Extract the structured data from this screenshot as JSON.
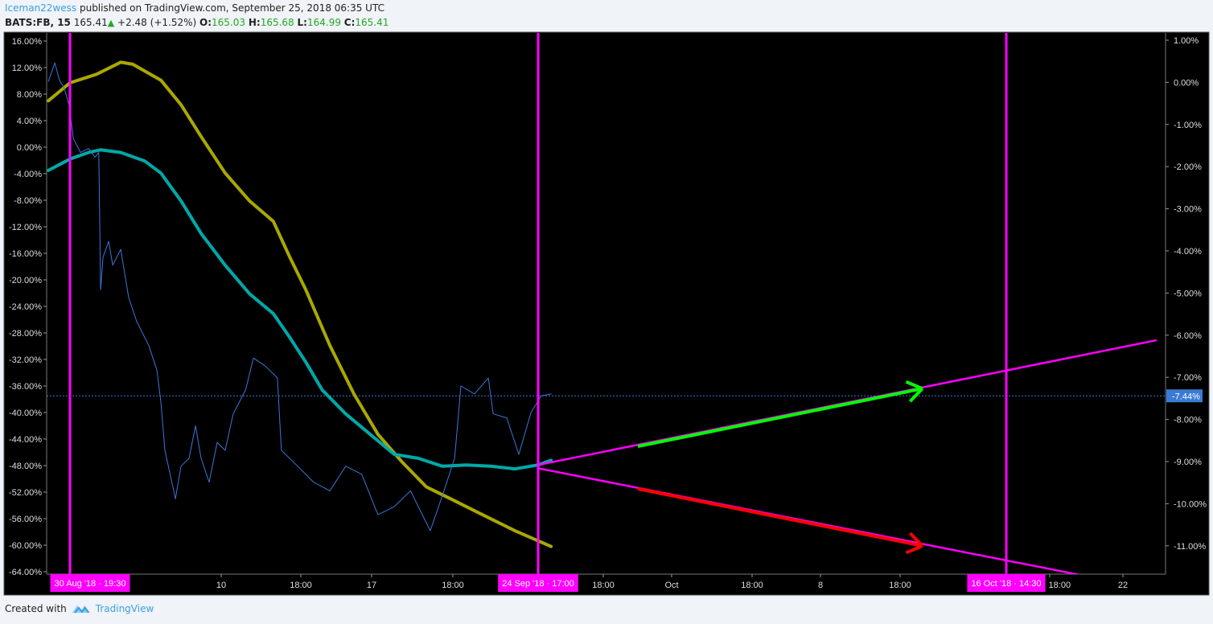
{
  "header": {
    "author": "Iceman22wess",
    "published": "published on TradingView.com, September 25, 2018 06:35 UTC",
    "symbol": "BATS:FB, 15",
    "last": "165.41",
    "change": "+2.48 (+1.52%)",
    "o_label": "O:",
    "o": "165.03",
    "h_label": "H:",
    "h": "165.68",
    "l_label": "L:",
    "l": "164.99",
    "c_label": "C:",
    "c": "165.41"
  },
  "footer": {
    "created_with": "Created with",
    "brand": "TradingView"
  },
  "colors": {
    "background": "#000000",
    "price": "#3a78d9",
    "ma_slow": "#aaa800",
    "ma_fast": "#00a8a8",
    "drawing": "#ff00ff",
    "up_arrow": "#00ff00",
    "down_arrow": "#ff0000",
    "last_badge": "#3a7bd5"
  },
  "chart_data": {
    "type": "line",
    "title": "",
    "left_axis": {
      "ylim": [
        -64,
        16
      ],
      "unit": "%",
      "ticks": [
        "16.00%",
        "12.00%",
        "8.00%",
        "4.00%",
        "0.00%",
        "-4.00%",
        "-8.00%",
        "-12.00%",
        "-16.00%",
        "-20.00%",
        "-24.00%",
        "-28.00%",
        "-32.00%",
        "-36.00%",
        "-40.00%",
        "-44.00%",
        "-48.00%",
        "-52.00%",
        "-56.00%",
        "-60.00%",
        "-64.00%"
      ]
    },
    "right_axis": {
      "ticks": [
        "1.00%",
        "0.00%",
        "-1.00%",
        "-2.00%",
        "-3.00%",
        "-4.00%",
        "-5.00%",
        "-6.00%",
        "-7.00%",
        "-8.00%",
        "-9.00%",
        "-10.00%",
        "-11.00%"
      ],
      "last_value_label": "-7.44%",
      "last_value": -7.44
    },
    "x_ticks": [
      {
        "label": "10",
        "time": "2018-09-10T00:00"
      },
      {
        "label": "18:00",
        "time": "2018-09-13T18:00"
      },
      {
        "label": "17",
        "time": "2018-09-17T00:00"
      },
      {
        "label": "18:00",
        "time": "2018-09-20T18:00"
      },
      {
        "label": "18:00",
        "time": "2018-09-27T18:00"
      },
      {
        "label": "Oct",
        "time": "2018-10-01T00:00"
      },
      {
        "label": "18:00",
        "time": "2018-10-04T18:00"
      },
      {
        "label": "8",
        "time": "2018-10-08T00:00"
      },
      {
        "label": "18:00",
        "time": "2018-10-11T18:00"
      },
      {
        "label": "18:00",
        "time": "2018-10-17T18:00"
      },
      {
        "label": "22",
        "time": "2018-10-22T00:00"
      }
    ],
    "vertical_markers": [
      {
        "label": "30 Aug '18 · 19:30",
        "time": "2018-08-30T19:30"
      },
      {
        "label": "24 Sep '18 · 17:00",
        "time": "2018-09-24T17:00"
      },
      {
        "label": "16 Oct '18 · 14:30",
        "time": "2018-10-16T14:30"
      }
    ],
    "series": [
      {
        "id": "price",
        "points": [
          [
            "2018-08-29T08:30",
            9.9
          ],
          [
            "2018-08-29T19:00",
            12.7
          ],
          [
            "2018-08-30T02:30",
            10.1
          ],
          [
            "2018-08-30T10:30",
            8.8
          ],
          [
            "2018-08-30T18:00",
            6.4
          ],
          [
            "2018-08-31T01:00",
            1.3
          ],
          [
            "2018-08-31T12:30",
            -0.8
          ],
          [
            "2018-09-01T01:30",
            -0.2
          ],
          [
            "2018-09-01T12:00",
            -1.5
          ],
          [
            "2018-09-01T18:00",
            -0.8
          ],
          [
            "2018-09-01T21:00",
            -21.5
          ],
          [
            "2018-09-02T01:00",
            -16.6
          ],
          [
            "2018-09-02T10:00",
            -14.2
          ],
          [
            "2018-09-02T16:30",
            -17.8
          ],
          [
            "2018-09-03T05:30",
            -15.4
          ],
          [
            "2018-09-03T18:30",
            -22.7
          ],
          [
            "2018-09-04T07:30",
            -26.3
          ],
          [
            "2018-09-05T03:00",
            -29.9
          ],
          [
            "2018-09-05T16:00",
            -33.6
          ],
          [
            "2018-09-05T22:30",
            -38.4
          ],
          [
            "2018-09-06T05:00",
            -45.7
          ],
          [
            "2018-09-06T22:00",
            -53.0
          ],
          [
            "2018-09-07T07:00",
            -48.1
          ],
          [
            "2018-09-07T20:00",
            -46.9
          ],
          [
            "2018-09-08T06:30",
            -42.0
          ],
          [
            "2018-09-08T15:30",
            -46.9
          ],
          [
            "2018-09-09T04:30",
            -50.5
          ],
          [
            "2018-09-09T17:30",
            -44.5
          ],
          [
            "2018-09-10T04:30",
            -45.7
          ],
          [
            "2018-09-10T13:30",
            -40.2
          ],
          [
            "2018-09-11T03:30",
            -36.6
          ],
          [
            "2018-09-11T12:30",
            -31.8
          ],
          [
            "2018-09-12T02:00",
            -33.0
          ],
          [
            "2018-09-12T15:30",
            -34.8
          ],
          [
            "2018-09-12T20:00",
            -45.7
          ],
          [
            "2018-09-13T14:30",
            -48.1
          ],
          [
            "2018-09-14T08:00",
            -50.5
          ],
          [
            "2018-09-15T02:00",
            -51.8
          ],
          [
            "2018-09-15T19:30",
            -48.1
          ],
          [
            "2018-09-16T13:00",
            -49.3
          ],
          [
            "2018-09-17T07:00",
            -55.4
          ],
          [
            "2018-09-18T01:00",
            -54.2
          ],
          [
            "2018-09-18T19:00",
            -51.8
          ],
          [
            "2018-09-19T17:00",
            -57.8
          ],
          [
            "2018-09-20T06:30",
            -52.5
          ],
          [
            "2018-09-20T20:00",
            -46.9
          ],
          [
            "2018-09-21T03:00",
            -36.0
          ],
          [
            "2018-09-21T18:00",
            -37.2
          ],
          [
            "2018-09-22T09:30",
            -34.8
          ],
          [
            "2018-09-22T15:00",
            -40.2
          ],
          [
            "2018-09-23T06:00",
            -40.8
          ],
          [
            "2018-09-23T19:30",
            -46.3
          ],
          [
            "2018-09-24T09:00",
            -40.0
          ],
          [
            "2018-09-24T20:30",
            -37.5
          ],
          [
            "2018-09-25T07:30",
            -37.2
          ]
        ]
      },
      {
        "id": "ma_slow",
        "points": [
          [
            "2018-08-29T08:30",
            7.0
          ],
          [
            "2018-08-30T19:30",
            9.7
          ],
          [
            "2018-09-01T14:30",
            11.0
          ],
          [
            "2018-09-03T05:30",
            12.8
          ],
          [
            "2018-09-04T01:00",
            12.5
          ],
          [
            "2018-09-05T22:30",
            10.1
          ],
          [
            "2018-09-07T07:00",
            6.4
          ],
          [
            "2018-09-08T15:30",
            1.6
          ],
          [
            "2018-09-10T04:30",
            -3.9
          ],
          [
            "2018-09-11T08:00",
            -8.1
          ],
          [
            "2018-09-12T11:00",
            -11.2
          ],
          [
            "2018-09-13T05:30",
            -16.6
          ],
          [
            "2018-09-13T23:30",
            -21.5
          ],
          [
            "2018-09-15T02:00",
            -29.9
          ],
          [
            "2018-09-16T04:30",
            -37.2
          ],
          [
            "2018-09-17T07:00",
            -43.3
          ],
          [
            "2018-09-18T10:00",
            -47.5
          ],
          [
            "2018-09-19T12:30",
            -51.2
          ],
          [
            "2018-09-20T15:30",
            -53.0
          ],
          [
            "2018-09-22T03:00",
            -55.4
          ],
          [
            "2018-09-23T15:00",
            -57.8
          ],
          [
            "2018-09-25T07:30",
            -60.2
          ]
        ]
      },
      {
        "id": "ma_fast",
        "points": [
          [
            "2018-08-29T08:30",
            -3.5
          ],
          [
            "2018-08-30T19:30",
            -1.8
          ],
          [
            "2018-09-01T01:30",
            -0.8
          ],
          [
            "2018-09-01T21:00",
            -0.4
          ],
          [
            "2018-09-03T05:30",
            -0.8
          ],
          [
            "2018-09-04T20:30",
            -2.1
          ],
          [
            "2018-09-05T22:30",
            -3.9
          ],
          [
            "2018-09-07T07:00",
            -8.1
          ],
          [
            "2018-09-08T15:30",
            -13.0
          ],
          [
            "2018-09-10T04:30",
            -17.8
          ],
          [
            "2018-09-11T08:00",
            -22.1
          ],
          [
            "2018-09-12T11:00",
            -25.1
          ],
          [
            "2018-09-13T05:30",
            -28.7
          ],
          [
            "2018-09-13T23:30",
            -32.4
          ],
          [
            "2018-09-14T17:30",
            -36.6
          ],
          [
            "2018-09-15T19:30",
            -40.2
          ],
          [
            "2018-09-16T22:30",
            -43.3
          ],
          [
            "2018-09-18T01:00",
            -46.3
          ],
          [
            "2018-09-19T03:30",
            -46.9
          ],
          [
            "2018-09-20T06:30",
            -48.1
          ],
          [
            "2018-09-21T09:00",
            -47.9
          ],
          [
            "2018-09-22T12:00",
            -48.1
          ],
          [
            "2018-09-23T15:00",
            -48.5
          ],
          [
            "2018-09-24T17:00",
            -47.9
          ],
          [
            "2018-09-25T07:30",
            -47.2
          ]
        ]
      }
    ],
    "drawings": [
      {
        "id": "upper-trend-line",
        "color": "#ff00ff",
        "from": [
          "2018-09-24T17:00",
          -47.9
        ],
        "to": [
          "2018-10-23T23:00",
          -29.1
        ]
      },
      {
        "id": "lower-trend-line",
        "color": "#ff00ff",
        "from": [
          "2018-09-24T17:00",
          -48.4
        ],
        "to": [
          "2018-10-19T08:30",
          -64.4
        ]
      },
      {
        "id": "up-arrow",
        "color": "#00ff00",
        "from": [
          "2018-09-29T09:30",
          -45.1
        ],
        "to": [
          "2018-10-12T18:30",
          -36.4
        ]
      },
      {
        "id": "down-arrow",
        "color": "#ff0000",
        "from": [
          "2018-09-29T09:30",
          -51.5
        ],
        "to": [
          "2018-10-12T18:30",
          -60.1
        ]
      }
    ]
  }
}
